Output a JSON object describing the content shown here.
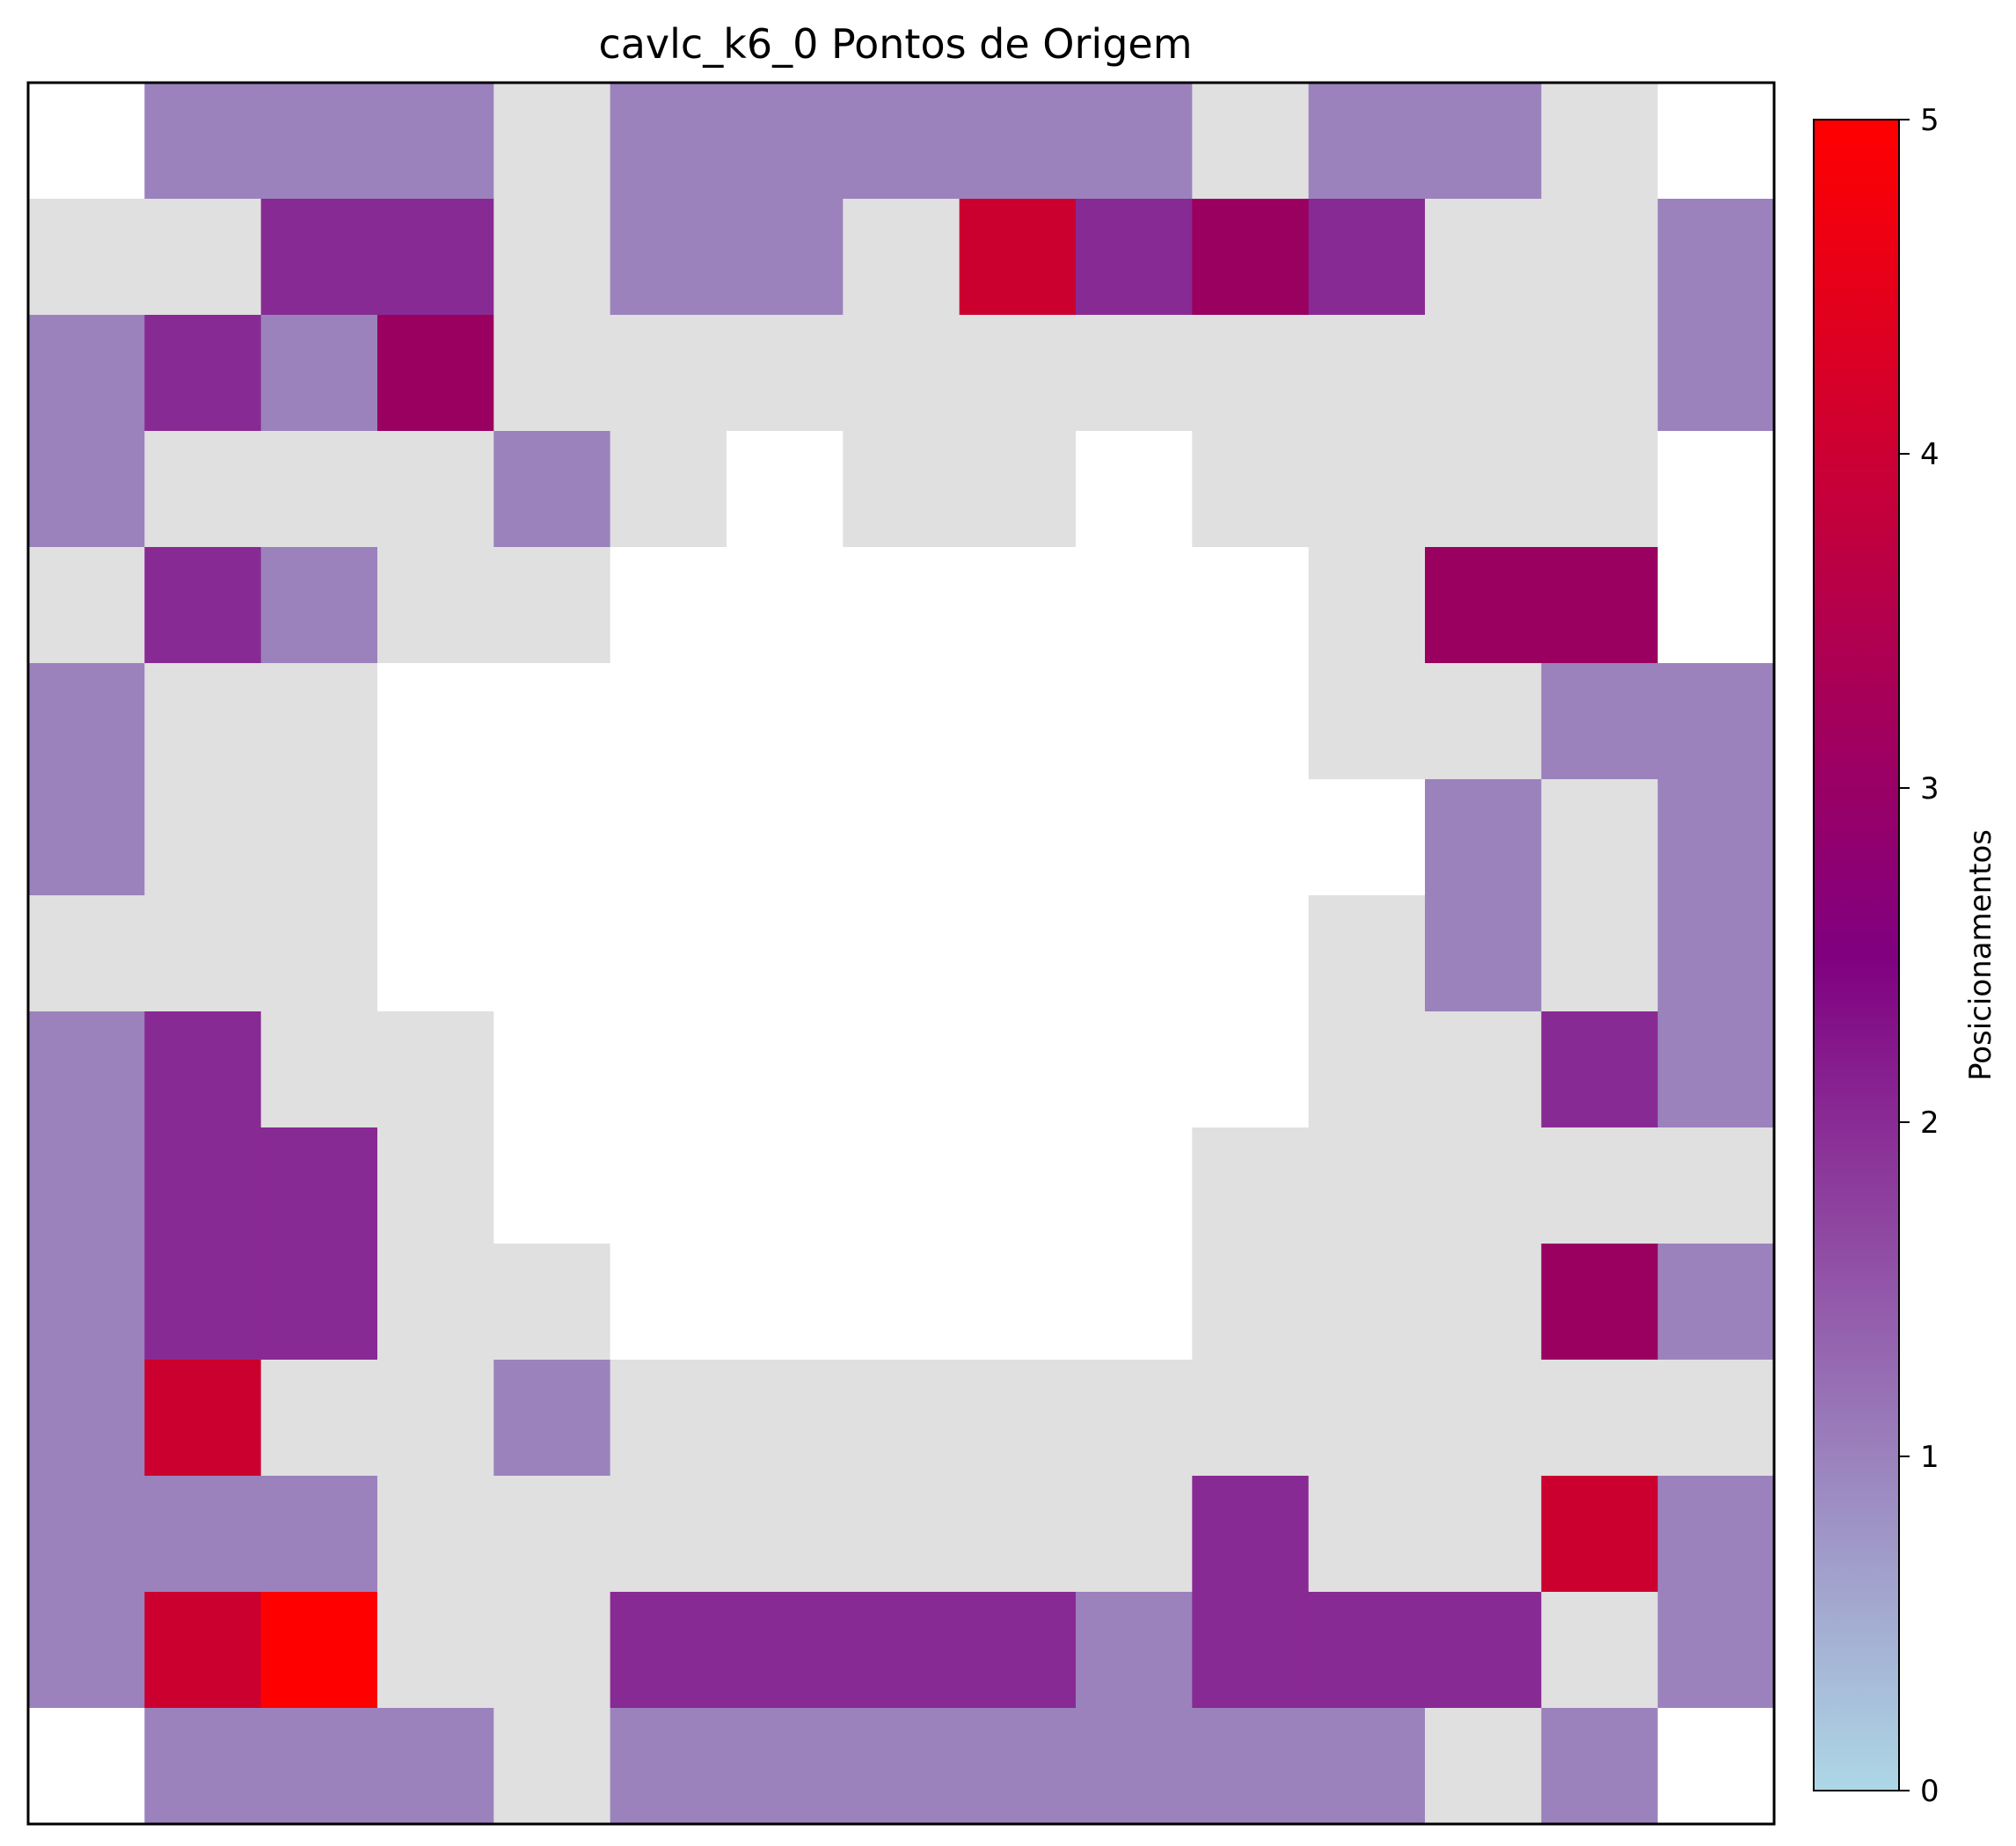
{
  "chart_data": {
    "type": "heatmap",
    "title": "cavlc_k6_0 Pontos de Origem",
    "xlabel": "",
    "ylabel": "",
    "colorbar": {
      "label": "Posicionamentos",
      "range": [
        0,
        5
      ],
      "ticks": [
        "0",
        "1",
        "2",
        "3",
        "4",
        "5"
      ],
      "colormap": [
        "#add8e6",
        "#800080",
        "#ff0000"
      ]
    },
    "colors": {
      "zero": "#e0e0e0",
      "no_data": "#ffffff",
      "one": "#9b82bd",
      "two": "#882a93",
      "three": "#990060",
      "four": "#cc002f",
      "five": "#ff0000"
    },
    "rows": 15,
    "cols": 15,
    "values": [
      [
        null,
        1,
        1,
        1,
        0,
        1,
        1,
        1,
        1,
        1,
        0,
        1,
        1,
        0,
        null
      ],
      [
        0,
        0,
        2,
        2,
        0,
        1,
        1,
        0,
        4,
        2,
        3,
        2,
        0,
        0,
        1
      ],
      [
        1,
        2,
        1,
        3,
        0,
        0,
        0,
        0,
        0,
        0,
        0,
        0,
        0,
        0,
        1
      ],
      [
        1,
        0,
        0,
        0,
        1,
        0,
        null,
        0,
        0,
        null,
        0,
        0,
        0,
        0,
        null
      ],
      [
        0,
        2,
        1,
        0,
        0,
        null,
        null,
        null,
        null,
        null,
        null,
        0,
        3,
        3,
        null
      ],
      [
        1,
        0,
        0,
        null,
        null,
        null,
        null,
        null,
        null,
        null,
        null,
        0,
        0,
        1,
        1
      ],
      [
        1,
        0,
        0,
        null,
        null,
        null,
        null,
        null,
        null,
        null,
        null,
        null,
        1,
        0,
        1
      ],
      [
        0,
        0,
        0,
        null,
        null,
        null,
        null,
        null,
        null,
        null,
        null,
        0,
        1,
        0,
        1
      ],
      [
        1,
        2,
        0,
        0,
        null,
        null,
        null,
        null,
        null,
        null,
        null,
        0,
        0,
        2,
        1
      ],
      [
        1,
        2,
        2,
        0,
        null,
        null,
        null,
        null,
        null,
        null,
        0,
        0,
        0,
        0,
        0
      ],
      [
        1,
        2,
        2,
        0,
        0,
        null,
        null,
        null,
        null,
        null,
        0,
        0,
        0,
        3,
        1
      ],
      [
        1,
        4,
        0,
        0,
        1,
        0,
        0,
        0,
        0,
        0,
        0,
        0,
        0,
        0,
        0
      ],
      [
        1,
        1,
        1,
        0,
        0,
        0,
        0,
        0,
        0,
        0,
        2,
        0,
        0,
        4,
        1
      ],
      [
        1,
        4,
        5,
        0,
        0,
        2,
        2,
        2,
        2,
        1,
        2,
        2,
        2,
        0,
        1
      ],
      [
        null,
        1,
        1,
        1,
        0,
        1,
        1,
        1,
        1,
        1,
        1,
        1,
        0,
        1,
        null
      ]
    ]
  }
}
